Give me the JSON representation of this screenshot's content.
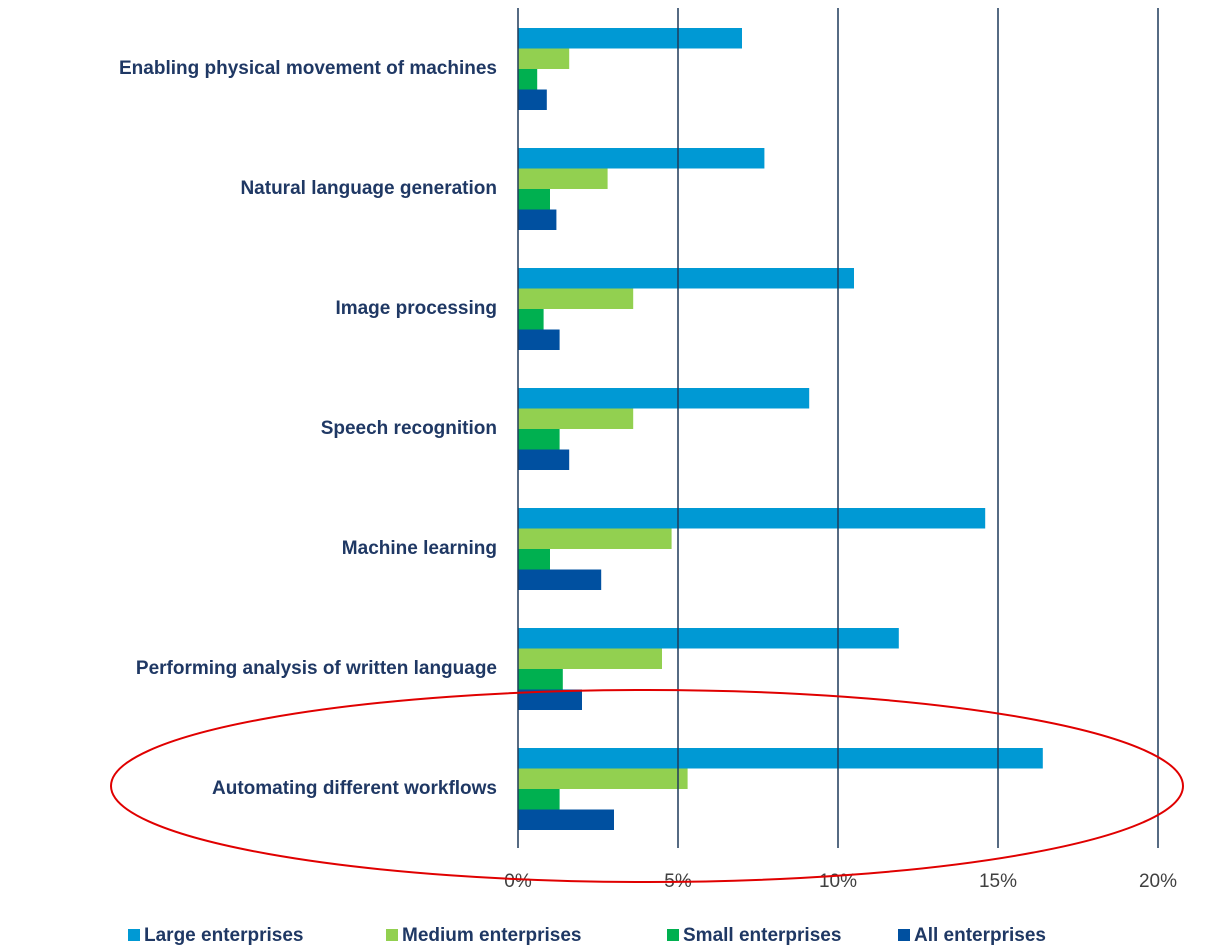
{
  "chart_data": {
    "type": "barh",
    "categories": [
      "Enabling physical movement of machines",
      "Natural language generation",
      "Image processing",
      "Speech recognition",
      "Machine learning",
      "Performing analysis of written language",
      "Automating different workflows"
    ],
    "series": [
      {
        "name": "Large enterprises",
        "color": "#0099d4",
        "values": [
          7.0,
          7.7,
          10.5,
          9.1,
          14.6,
          11.9,
          16.4
        ]
      },
      {
        "name": "Medium enterprises",
        "color": "#92d050",
        "values": [
          1.6,
          2.8,
          3.6,
          3.6,
          4.8,
          4.5,
          5.3
        ]
      },
      {
        "name": "Small enterprises",
        "color": "#00b050",
        "values": [
          0.6,
          1.0,
          0.8,
          1.3,
          1.0,
          1.4,
          1.3
        ]
      },
      {
        "name": "All enterprises",
        "color": "#0050a0",
        "values": [
          0.9,
          1.2,
          1.3,
          1.6,
          2.6,
          2.0,
          3.0
        ]
      }
    ],
    "xlim": [
      0,
      20
    ],
    "xticks": [
      {
        "value": 0,
        "label": "0%"
      },
      {
        "value": 5,
        "label": "5%"
      },
      {
        "value": 10,
        "label": "10%"
      },
      {
        "value": 15,
        "label": "15%"
      },
      {
        "value": 20,
        "label": "20%"
      }
    ],
    "grid": true
  }
}
